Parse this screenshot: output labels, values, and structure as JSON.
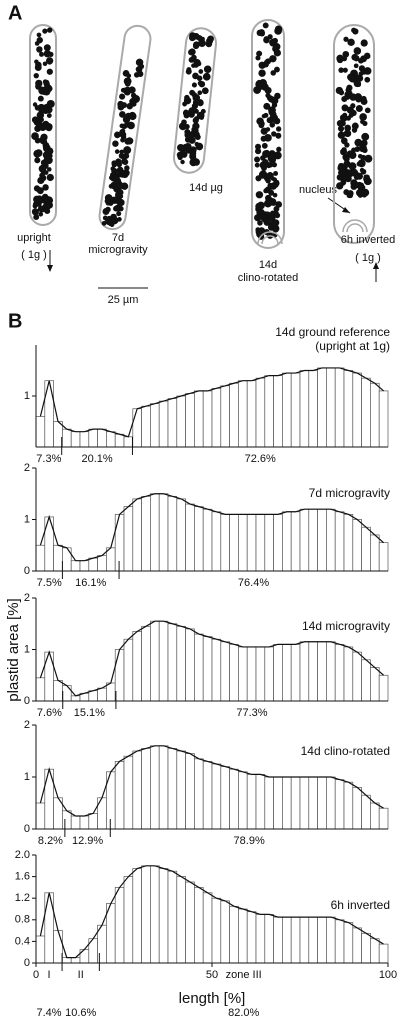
{
  "panel_a": {
    "label": "A",
    "cells": [
      {
        "lines": [
          "upright",
          "( 1g )"
        ]
      },
      {
        "lines": [
          "7d",
          "microgravity"
        ]
      },
      {
        "lines": [
          "14d µg"
        ]
      },
      {
        "lines": [
          "14d",
          "clino-rotated"
        ]
      },
      {
        "lines": [
          "6h inverted",
          "( 1g )"
        ]
      }
    ],
    "nucleus": "nucleus",
    "scale_bar": "25 µm"
  },
  "panel_b": {
    "label": "B",
    "y_label": "plastid area [%]",
    "x_label": "length [%]",
    "xlim": [
      0,
      100
    ],
    "xticks": [
      0,
      50,
      100
    ],
    "charts": [
      {
        "type": "bar",
        "title": "14d ground reference",
        "subtitle": "(upright at 1g)",
        "ylim": [
          0,
          2
        ],
        "yticks": [
          1
        ],
        "x": [
          1.25,
          3.75,
          6.25,
          8.75,
          11.25,
          13.75,
          16.25,
          18.75,
          21.25,
          23.75,
          26.25,
          28.75,
          31.25,
          33.75,
          36.25,
          38.75,
          41.25,
          43.75,
          46.25,
          48.75,
          51.25,
          53.75,
          56.25,
          58.75,
          61.25,
          63.75,
          66.25,
          68.75,
          71.25,
          73.75,
          76.25,
          78.75,
          81.25,
          83.75,
          86.25,
          88.75,
          91.25,
          93.75,
          96.25,
          98.75
        ],
        "values": [
          0.6,
          1.3,
          0.5,
          0.35,
          0.3,
          0.3,
          0.35,
          0.35,
          0.3,
          0.25,
          0.2,
          0.75,
          0.8,
          0.85,
          0.9,
          0.95,
          1.0,
          1.05,
          1.1,
          1.1,
          1.15,
          1.2,
          1.25,
          1.3,
          1.3,
          1.35,
          1.4,
          1.4,
          1.45,
          1.45,
          1.5,
          1.5,
          1.55,
          1.55,
          1.55,
          1.5,
          1.45,
          1.35,
          1.25,
          1.1
        ],
        "zones": [
          7.3,
          20.1,
          72.6
        ],
        "zone_labels": [
          "7.3%",
          "20.1%",
          "72.6%"
        ]
      },
      {
        "type": "bar",
        "title": "7d microgravity",
        "ylim": [
          0,
          2
        ],
        "yticks": [
          0,
          1,
          2
        ],
        "x": [
          1.25,
          3.75,
          6.25,
          8.75,
          11.25,
          13.75,
          16.25,
          18.75,
          21.25,
          23.75,
          26.25,
          28.75,
          31.25,
          33.75,
          36.25,
          38.75,
          41.25,
          43.75,
          46.25,
          48.75,
          51.25,
          53.75,
          56.25,
          58.75,
          61.25,
          63.75,
          66.25,
          68.75,
          71.25,
          73.75,
          76.25,
          78.75,
          81.25,
          83.75,
          86.25,
          88.75,
          91.25,
          93.75,
          96.25,
          98.75
        ],
        "values": [
          0.5,
          1.05,
          0.5,
          0.45,
          0.2,
          0.2,
          0.25,
          0.3,
          0.45,
          1.1,
          1.25,
          1.4,
          1.45,
          1.5,
          1.5,
          1.45,
          1.4,
          1.3,
          1.25,
          1.2,
          1.15,
          1.1,
          1.1,
          1.1,
          1.1,
          1.1,
          1.1,
          1.1,
          1.15,
          1.15,
          1.2,
          1.2,
          1.2,
          1.2,
          1.15,
          1.1,
          1.0,
          0.85,
          0.7,
          0.55
        ],
        "zones": [
          7.5,
          16.1,
          76.4
        ],
        "zone_labels": [
          "7.5%",
          "16.1%",
          "76.4%"
        ]
      },
      {
        "type": "bar",
        "title": "14d microgravity",
        "ylim": [
          0,
          2
        ],
        "yticks": [
          0,
          1,
          2
        ],
        "x": [
          1.25,
          3.75,
          6.25,
          8.75,
          11.25,
          13.75,
          16.25,
          18.75,
          21.25,
          23.75,
          26.25,
          28.75,
          31.25,
          33.75,
          36.25,
          38.75,
          41.25,
          43.75,
          46.25,
          48.75,
          51.25,
          53.75,
          56.25,
          58.75,
          61.25,
          63.75,
          66.25,
          68.75,
          71.25,
          73.75,
          76.25,
          78.75,
          81.25,
          83.75,
          86.25,
          88.75,
          91.25,
          93.75,
          96.25,
          98.75
        ],
        "values": [
          0.45,
          0.95,
          0.4,
          0.3,
          0.1,
          0.15,
          0.2,
          0.25,
          0.35,
          1.0,
          1.2,
          1.35,
          1.45,
          1.55,
          1.55,
          1.5,
          1.45,
          1.4,
          1.3,
          1.25,
          1.2,
          1.15,
          1.1,
          1.05,
          1.05,
          1.05,
          1.05,
          1.1,
          1.1,
          1.1,
          1.15,
          1.15,
          1.15,
          1.15,
          1.1,
          1.05,
          0.95,
          0.8,
          0.65,
          0.5
        ],
        "zones": [
          7.6,
          15.1,
          77.3
        ],
        "zone_labels": [
          "7.6%",
          "15.1%",
          "77.3%"
        ]
      },
      {
        "type": "bar",
        "title": "14d clino-rotated",
        "ylim": [
          0,
          2
        ],
        "yticks": [
          0,
          1,
          2
        ],
        "x": [
          1.25,
          3.75,
          6.25,
          8.75,
          11.25,
          13.75,
          16.25,
          18.75,
          21.25,
          23.75,
          26.25,
          28.75,
          31.25,
          33.75,
          36.25,
          38.75,
          41.25,
          43.75,
          46.25,
          48.75,
          51.25,
          53.75,
          56.25,
          58.75,
          61.25,
          63.75,
          66.25,
          68.75,
          71.25,
          73.75,
          76.25,
          78.75,
          81.25,
          83.75,
          86.25,
          88.75,
          91.25,
          93.75,
          96.25,
          98.75
        ],
        "values": [
          0.5,
          1.15,
          0.6,
          0.35,
          0.25,
          0.25,
          0.3,
          0.6,
          1.1,
          1.3,
          1.4,
          1.5,
          1.55,
          1.6,
          1.6,
          1.55,
          1.5,
          1.45,
          1.35,
          1.3,
          1.25,
          1.2,
          1.15,
          1.1,
          1.05,
          1.05,
          1.0,
          1.0,
          1.0,
          1.0,
          1.0,
          1.0,
          1.0,
          1.0,
          0.95,
          0.9,
          0.8,
          0.65,
          0.5,
          0.4
        ],
        "zones": [
          8.2,
          12.9,
          78.9
        ],
        "zone_labels": [
          "8.2%",
          "12.9%",
          "78.9%"
        ]
      },
      {
        "type": "bar",
        "title": "6h inverted",
        "ylim": [
          0,
          2
        ],
        "yticks": [
          0,
          0.4,
          0.8,
          1.2,
          1.6,
          {
            "value": 2,
            "label": "2.0"
          }
        ],
        "x": [
          1.25,
          3.75,
          6.25,
          8.75,
          11.25,
          13.75,
          16.25,
          18.75,
          21.25,
          23.75,
          26.25,
          28.75,
          31.25,
          33.75,
          36.25,
          38.75,
          41.25,
          43.75,
          46.25,
          48.75,
          51.25,
          53.75,
          56.25,
          58.75,
          61.25,
          63.75,
          66.25,
          68.75,
          71.25,
          73.75,
          76.25,
          78.75,
          81.25,
          83.75,
          86.25,
          88.75,
          91.25,
          93.75,
          96.25,
          98.75
        ],
        "values": [
          0.5,
          1.3,
          0.6,
          0.1,
          0.1,
          0.25,
          0.45,
          0.7,
          1.1,
          1.4,
          1.6,
          1.75,
          1.8,
          1.8,
          1.75,
          1.7,
          1.6,
          1.5,
          1.4,
          1.3,
          1.2,
          1.15,
          1.05,
          1.0,
          0.95,
          0.9,
          0.9,
          0.85,
          0.85,
          0.85,
          0.85,
          0.85,
          0.85,
          0.85,
          0.8,
          0.75,
          0.65,
          0.55,
          0.45,
          0.35
        ],
        "zones": [
          7.4,
          10.6,
          82.0
        ],
        "zone_labels": [
          "7.4%",
          "10.6%",
          "82.0%"
        ],
        "zone_names": [
          "I",
          "II",
          "zone III"
        ]
      }
    ]
  }
}
